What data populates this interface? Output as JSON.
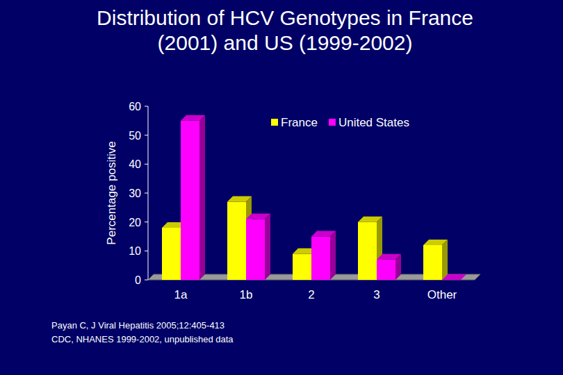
{
  "chart_data": {
    "type": "bar",
    "title": "Distribution of HCV Genotypes in France (2001) and US (1999-2002)",
    "y_label": "Percentage positive",
    "categories": [
      "1a",
      "1b",
      "2",
      "3",
      "Other"
    ],
    "series": [
      {
        "name": "France",
        "color": "#ffff00",
        "values": [
          18,
          27,
          9,
          20,
          12
        ]
      },
      {
        "name": "United States",
        "color": "#ff00ff",
        "values": [
          55,
          21,
          15,
          7,
          0
        ]
      }
    ],
    "ylim": [
      0,
      60
    ],
    "yticks": [
      0,
      10,
      20,
      30,
      40,
      50,
      60
    ],
    "grid": false,
    "legend": "top-right",
    "annotations": [
      "Payan C, J Viral Hepatitis 2005;12:405-413",
      "CDC, NHANES 1999-2002, unpublished data"
    ]
  }
}
